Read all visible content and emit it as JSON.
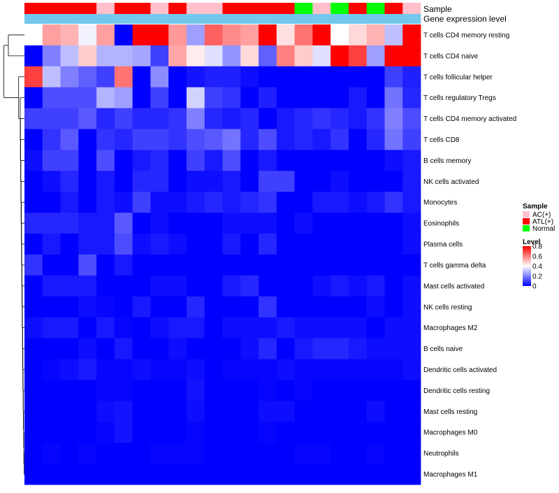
{
  "chart_data": {
    "type": "heatmap",
    "title": "",
    "annotation_tracks": [
      {
        "name": "Sample",
        "label": "Sample"
      },
      {
        "name": "Gene expression level",
        "label": "Gene expression level"
      }
    ],
    "columns_sample": [
      "ATL(+)",
      "ATL(+)",
      "ATL(+)",
      "ATL(+)",
      "AC(+)",
      "ATL(+)",
      "ATL(+)",
      "AC(+)",
      "ATL(+)",
      "AC(+)",
      "AC(+)",
      "ATL(+)",
      "ATL(+)",
      "ATL(+)",
      "ATL(+)",
      "Normal",
      "AC(+)",
      "Normal",
      "ATL(+)",
      "Normal",
      "ATL(+)",
      "AC(+)"
    ],
    "gene_expression_track": [
      0.05,
      0.05,
      0.05,
      0.05,
      0.05,
      0.05,
      0.05,
      0.05,
      0.05,
      0.05,
      0.05,
      0.05,
      0.05,
      0.05,
      0.05,
      0.05,
      0.05,
      0.05,
      0.05,
      0.05,
      0.05,
      0.05
    ],
    "rows": [
      "T cells CD4 memory resting",
      "T cells CD4 naive",
      "T cells follicular helper",
      "T cells regulatory  Tregs",
      "T cells CD4 memory activated",
      "T cells CD8",
      "B cells memory",
      "NK cells activated",
      "Monocytes",
      "Eosinophils",
      "Plasma cells",
      "T cells gamma delta",
      "Mast cells activated",
      "NK cells resting",
      "Macrophages M2",
      "B cells naive",
      "Dendritic cells activated",
      "Dendritic cells resting",
      "Mast cells resting",
      "Macrophages M0",
      "Neutrophils",
      "Macrophages M1"
    ],
    "values": [
      [
        0.4,
        0.55,
        0.52,
        0.38,
        0.55,
        0.0,
        0.8,
        0.8,
        0.56,
        0.25,
        0.65,
        0.58,
        0.55,
        0.8,
        0.45,
        0.62,
        0.8,
        0.4,
        0.46,
        0.52,
        0.3,
        0.8
      ],
      [
        0.0,
        0.2,
        0.3,
        0.48,
        0.28,
        0.28,
        0.26,
        0.1,
        0.54,
        0.43,
        0.35,
        0.23,
        0.46,
        0.15,
        0.6,
        0.48,
        0.35,
        0.8,
        0.7,
        0.25,
        0.8,
        0.8
      ],
      [
        0.7,
        0.3,
        0.2,
        0.15,
        0.1,
        0.62,
        0.0,
        0.22,
        0.0,
        0.03,
        0.05,
        0.05,
        0.02,
        0.0,
        0.0,
        0.0,
        0.0,
        0.0,
        0.0,
        0.0,
        0.1,
        0.05
      ],
      [
        0.0,
        0.12,
        0.12,
        0.12,
        0.28,
        0.25,
        0.0,
        0.1,
        0.0,
        0.33,
        0.1,
        0.08,
        0.0,
        0.05,
        0.0,
        0.0,
        0.0,
        0.0,
        0.04,
        0.0,
        0.18,
        0.06
      ],
      [
        0.1,
        0.1,
        0.1,
        0.14,
        0.06,
        0.1,
        0.06,
        0.06,
        0.08,
        0.2,
        0.06,
        0.04,
        0.06,
        0.0,
        0.04,
        0.06,
        0.08,
        0.06,
        0.04,
        0.08,
        0.2,
        0.12
      ],
      [
        0.0,
        0.08,
        0.14,
        0.0,
        0.08,
        0.06,
        0.1,
        0.1,
        0.08,
        0.12,
        0.14,
        0.18,
        0.06,
        0.12,
        0.04,
        0.06,
        0.04,
        0.08,
        0.0,
        0.06,
        0.18,
        0.1
      ],
      [
        0.02,
        0.1,
        0.1,
        0.0,
        0.12,
        0.0,
        0.04,
        0.06,
        0.0,
        0.1,
        0.04,
        0.12,
        0.0,
        0.04,
        0.0,
        0.0,
        0.0,
        0.0,
        0.0,
        0.0,
        0.02,
        0.04
      ],
      [
        0.0,
        0.02,
        0.06,
        0.0,
        0.04,
        0.0,
        0.06,
        0.06,
        0.0,
        0.02,
        0.02,
        0.04,
        0.0,
        0.1,
        0.1,
        0.0,
        0.0,
        0.02,
        0.0,
        0.0,
        0.0,
        0.04
      ],
      [
        0.0,
        0.0,
        0.04,
        0.0,
        0.04,
        0.02,
        0.1,
        0.02,
        0.02,
        0.04,
        0.06,
        0.04,
        0.06,
        0.08,
        0.0,
        0.0,
        0.04,
        0.04,
        0.02,
        0.04,
        0.08,
        0.04
      ],
      [
        0.06,
        0.06,
        0.06,
        0.04,
        0.04,
        0.14,
        0.0,
        0.02,
        0.0,
        0.0,
        0.0,
        0.02,
        0.02,
        0.02,
        0.0,
        0.02,
        0.0,
        0.0,
        0.0,
        0.0,
        0.0,
        0.02
      ],
      [
        0.0,
        0.04,
        0.0,
        0.04,
        0.04,
        0.12,
        0.02,
        0.04,
        0.02,
        0.0,
        0.0,
        0.04,
        0.0,
        0.06,
        0.0,
        0.0,
        0.0,
        0.0,
        0.0,
        0.0,
        0.0,
        0.02
      ],
      [
        0.08,
        0.0,
        0.0,
        0.12,
        0.0,
        0.04,
        0.0,
        0.0,
        0.0,
        0.0,
        0.0,
        0.0,
        0.0,
        0.0,
        0.0,
        0.0,
        0.0,
        0.0,
        0.0,
        0.0,
        0.0,
        0.0
      ],
      [
        0.0,
        0.04,
        0.04,
        0.04,
        0.0,
        0.0,
        0.0,
        0.02,
        0.02,
        0.0,
        0.0,
        0.04,
        0.06,
        0.0,
        0.0,
        0.0,
        0.02,
        0.04,
        0.02,
        0.04,
        0.0,
        0.02
      ],
      [
        0.0,
        0.0,
        0.0,
        0.02,
        0.01,
        0.0,
        0.04,
        0.0,
        0.0,
        0.06,
        0.0,
        0.0,
        0.0,
        0.08,
        0.0,
        0.0,
        0.0,
        0.0,
        0.0,
        0.02,
        0.0,
        0.02
      ],
      [
        0.02,
        0.04,
        0.04,
        0.0,
        0.04,
        0.01,
        0.0,
        0.02,
        0.04,
        0.04,
        0.0,
        0.02,
        0.02,
        0.02,
        0.04,
        0.02,
        0.02,
        0.02,
        0.02,
        0.0,
        0.02,
        0.02
      ],
      [
        0.0,
        0.0,
        0.0,
        0.02,
        0.0,
        0.04,
        0.0,
        0.0,
        0.02,
        0.0,
        0.0,
        0.0,
        0.02,
        0.06,
        0.0,
        0.04,
        0.06,
        0.06,
        0.04,
        0.02,
        0.02,
        0.02
      ],
      [
        0.0,
        0.01,
        0.02,
        0.04,
        0.01,
        0.01,
        0.02,
        0.01,
        0.01,
        0.02,
        0.0,
        0.01,
        0.01,
        0.01,
        0.02,
        0.01,
        0.01,
        0.01,
        0.01,
        0.01,
        0.01,
        0.02
      ],
      [
        0.0,
        0.0,
        0.0,
        0.0,
        0.01,
        0.01,
        0.0,
        0.0,
        0.0,
        0.03,
        0.0,
        0.0,
        0.0,
        0.01,
        0.0,
        0.01,
        0.0,
        0.0,
        0.0,
        0.0,
        0.0,
        0.0
      ],
      [
        0.0,
        0.0,
        0.0,
        0.0,
        0.02,
        0.03,
        0.0,
        0.0,
        0.0,
        0.02,
        0.0,
        0.0,
        0.0,
        0.02,
        0.02,
        0.0,
        0.0,
        0.0,
        0.0,
        0.02,
        0.0,
        0.0
      ],
      [
        0.0,
        0.0,
        0.0,
        0.0,
        0.01,
        0.03,
        0.0,
        0.0,
        0.0,
        0.01,
        0.0,
        0.0,
        0.0,
        0.01,
        0.0,
        0.0,
        0.0,
        0.0,
        0.0,
        0.0,
        0.0,
        0.0
      ],
      [
        0.0,
        0.01,
        0.0,
        0.01,
        0.0,
        0.0,
        0.0,
        0.01,
        0.01,
        0.01,
        0.0,
        0.0,
        0.0,
        0.0,
        0.0,
        0.01,
        0.01,
        0.0,
        0.0,
        0.01,
        0.0,
        0.0
      ],
      [
        0.0,
        0.0,
        0.0,
        0.0,
        0.0,
        0.0,
        0.0,
        0.0,
        0.0,
        0.0,
        0.0,
        0.0,
        0.0,
        0.0,
        0.0,
        0.0,
        0.0,
        0.0,
        0.0,
        0.0,
        0.0,
        0.0
      ]
    ],
    "color_scale": {
      "min": 0,
      "max": 0.8,
      "low": "#0000ff",
      "mid": "#ffffff",
      "high": "#ff0000",
      "mid_value": 0.4
    },
    "legend": {
      "sample_title": "Sample",
      "sample_entries": [
        {
          "label": "AC(+)",
          "color": "#ffc0cb"
        },
        {
          "label": "ATL(+)",
          "color": "#ff0000"
        },
        {
          "label": "Normal",
          "color": "#00ff00"
        }
      ],
      "level_title": "Level",
      "level_ticks": [
        "0.8",
        "0.6",
        "0.4",
        "0.2",
        "0"
      ],
      "level_tick_values": [
        0.8,
        0.6,
        0.4,
        0.2,
        0
      ],
      "placement": "right"
    },
    "sample_colors": {
      "AC(+)": "#ffc0cb",
      "ATL(+)": "#ff0000",
      "Normal": "#00ff00"
    },
    "gene_expression_color": "#74c7ec"
  }
}
